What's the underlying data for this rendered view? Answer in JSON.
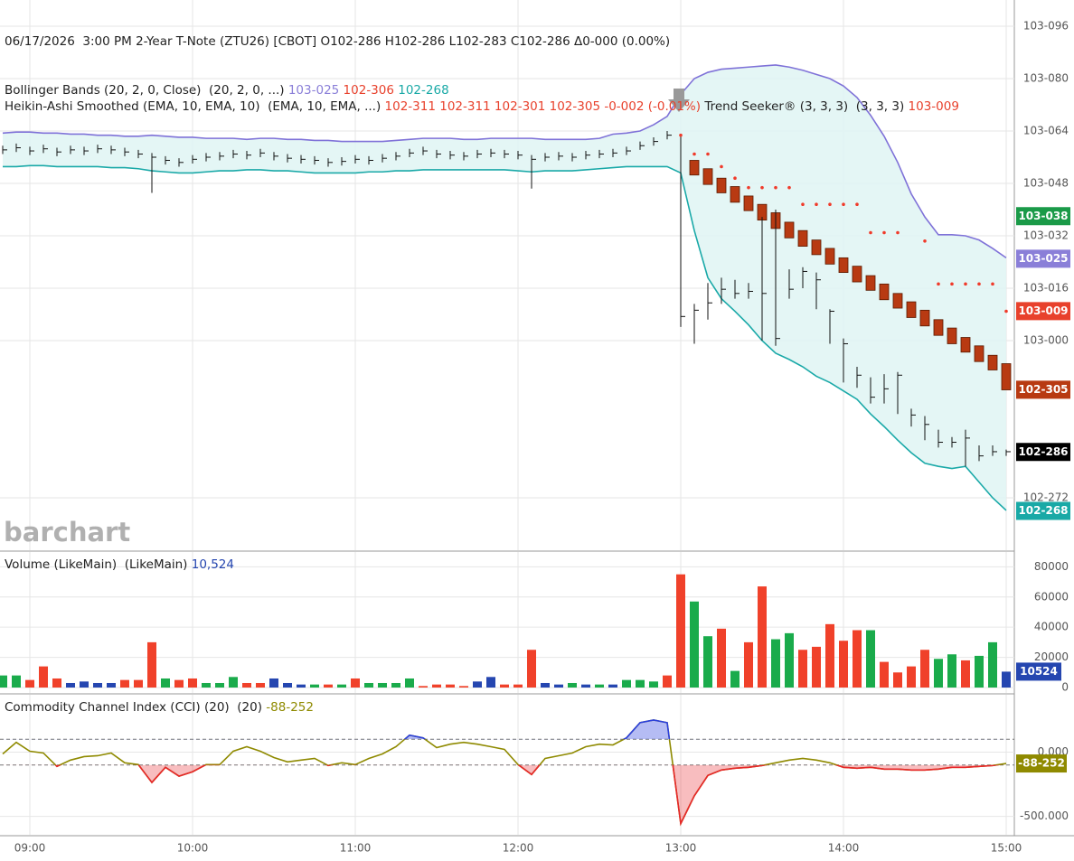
{
  "chart_data": [
    {
      "type": "ohlc",
      "title": "06/17/2026  3:00 PM 2-Year T-Note (ZTU26) [CBOT] O102-286 H102-286 L102-283 C102-286 Δ0-000 (0.00%)",
      "watermark": "barchart",
      "indicators": [
        {
          "name": "Bollinger Bands (20, 2, 0, Close)  (20, 2, 0, ...)",
          "values": [
            {
              "text": "103-025",
              "color": "#8a7fd8"
            },
            {
              "text": "102-306",
              "color": "#e8412c"
            },
            {
              "text": "102-268",
              "color": "#19a9a6"
            }
          ]
        },
        {
          "name": "Heikin-Ashi Smoothed (EMA, 10, EMA, 10)  (EMA, 10, EMA, ...)",
          "values": [
            {
              "text": "102-311 102-311 102-301 102-305 -0-002 (-0.01%)",
              "color": "#e8412c"
            }
          ]
        },
        {
          "name": "Trend Seeker® (3, 3, 3)  (3, 3, 3)",
          "values": [
            {
              "text": "103-009",
              "color": "#e8412c"
            }
          ]
        }
      ],
      "x": [
        "08:50",
        "08:55",
        "09:00",
        "09:05",
        "09:10",
        "09:15",
        "09:20",
        "09:25",
        "09:30",
        "09:35",
        "09:40",
        "09:45",
        "09:50",
        "09:55",
        "10:00",
        "10:05",
        "10:10",
        "10:15",
        "10:20",
        "10:25",
        "10:30",
        "10:35",
        "10:40",
        "10:45",
        "10:50",
        "10:55",
        "11:00",
        "11:05",
        "11:10",
        "11:15",
        "11:20",
        "11:25",
        "11:30",
        "11:35",
        "11:40",
        "11:45",
        "11:50",
        "11:55",
        "12:00",
        "12:05",
        "12:10",
        "12:15",
        "12:20",
        "12:25",
        "12:30",
        "12:35",
        "12:40",
        "12:45",
        "12:50",
        "12:55",
        "13:00",
        "13:05",
        "13:10",
        "13:15",
        "13:20",
        "13:25",
        "13:30",
        "13:35",
        "13:40",
        "13:45",
        "13:50",
        "13:55",
        "14:00",
        "14:05",
        "14:10",
        "14:15",
        "14:20",
        "14:25",
        "14:30",
        "14:35",
        "14:40",
        "14:45",
        "14:50",
        "14:55",
        "15:00"
      ],
      "high": [
        103.186,
        103.188,
        103.185,
        103.187,
        103.184,
        103.186,
        103.185,
        103.187,
        103.186,
        103.184,
        103.182,
        103.179,
        103.176,
        103.174,
        103.177,
        103.179,
        103.18,
        103.182,
        103.181,
        103.183,
        103.18,
        103.178,
        103.177,
        103.176,
        103.174,
        103.175,
        103.177,
        103.176,
        103.178,
        103.18,
        103.183,
        103.185,
        103.182,
        103.181,
        103.18,
        103.182,
        103.183,
        103.182,
        103.181,
        103.177,
        103.179,
        103.18,
        103.179,
        103.181,
        103.182,
        103.183,
        103.185,
        103.19,
        103.194,
        103.2,
        103.196,
        103.035,
        103.055,
        103.06,
        103.058,
        103.055,
        103.118,
        103.125,
        103.068,
        103.07,
        103.065,
        103.03,
        103.002,
        102.975,
        102.965,
        102.968,
        102.97,
        102.935,
        102.928,
        102.915,
        102.908,
        102.915,
        102.9,
        102.9,
        102.896
      ],
      "low": [
        103.178,
        103.18,
        103.177,
        103.179,
        103.176,
        103.178,
        103.177,
        103.179,
        103.178,
        103.176,
        103.174,
        103.141,
        103.168,
        103.166,
        103.169,
        103.171,
        103.172,
        103.174,
        103.173,
        103.175,
        103.172,
        103.17,
        103.169,
        103.168,
        103.166,
        103.167,
        103.169,
        103.168,
        103.17,
        103.172,
        103.175,
        103.177,
        103.174,
        103.173,
        103.172,
        103.174,
        103.175,
        103.174,
        103.173,
        103.145,
        103.171,
        103.172,
        103.171,
        103.173,
        103.174,
        103.175,
        103.177,
        103.182,
        103.186,
        103.192,
        103.013,
        102.997,
        103.02,
        103.035,
        103.04,
        103.04,
        103.0,
        102.995,
        103.04,
        103.05,
        103.03,
        102.997,
        102.96,
        102.955,
        102.94,
        102.94,
        102.93,
        102.918,
        102.905,
        102.898,
        102.898,
        102.88,
        102.885,
        102.89,
        102.89
      ],
      "close": [
        103.182,
        103.184,
        103.181,
        103.183,
        103.18,
        103.182,
        103.181,
        103.183,
        103.182,
        103.18,
        103.178,
        103.175,
        103.172,
        103.17,
        103.173,
        103.175,
        103.176,
        103.178,
        103.177,
        103.179,
        103.176,
        103.174,
        103.173,
        103.172,
        103.17,
        103.171,
        103.173,
        103.172,
        103.174,
        103.176,
        103.179,
        103.181,
        103.178,
        103.177,
        103.176,
        103.178,
        103.179,
        103.178,
        103.177,
        103.173,
        103.175,
        103.176,
        103.175,
        103.177,
        103.178,
        103.179,
        103.181,
        103.186,
        103.19,
        103.196,
        103.023,
        103.029,
        103.036,
        103.049,
        103.045,
        103.047,
        103.045,
        103.002,
        103.049,
        103.066,
        103.058,
        103.028,
        102.997,
        102.967,
        102.946,
        102.954,
        102.967,
        102.929,
        102.92,
        102.903,
        102.903,
        102.907,
        102.89,
        102.894,
        102.894
      ],
      "bollinger_upper": [
        103.198,
        103.199,
        103.199,
        103.198,
        103.198,
        103.197,
        103.197,
        103.196,
        103.196,
        103.195,
        103.195,
        103.196,
        103.195,
        103.194,
        103.194,
        103.193,
        103.193,
        103.193,
        103.192,
        103.193,
        103.193,
        103.192,
        103.192,
        103.191,
        103.191,
        103.19,
        103.19,
        103.19,
        103.19,
        103.191,
        103.192,
        103.193,
        103.193,
        103.193,
        103.192,
        103.192,
        103.193,
        103.193,
        103.193,
        103.193,
        103.192,
        103.192,
        103.192,
        103.192,
        103.193,
        103.197,
        103.198,
        103.2,
        103.206,
        103.214,
        103.235,
        103.25,
        103.256,
        103.259,
        103.26,
        103.261,
        103.262,
        103.263,
        103.261,
        103.258,
        103.254,
        103.25,
        103.243,
        103.232,
        103.215,
        103.195,
        103.17,
        103.14,
        103.118,
        103.101,
        103.101,
        103.1,
        103.096,
        103.088,
        103.079
      ],
      "bollinger_lower": [
        103.166,
        103.166,
        103.167,
        103.167,
        103.166,
        103.166,
        103.166,
        103.166,
        103.165,
        103.165,
        103.164,
        103.162,
        103.161,
        103.16,
        103.16,
        103.161,
        103.162,
        103.162,
        103.163,
        103.163,
        103.162,
        103.162,
        103.161,
        103.16,
        103.16,
        103.16,
        103.16,
        103.161,
        103.161,
        103.162,
        103.162,
        103.163,
        103.163,
        103.163,
        103.163,
        103.163,
        103.163,
        103.163,
        103.162,
        103.161,
        103.162,
        103.162,
        103.162,
        103.163,
        103.164,
        103.165,
        103.166,
        103.166,
        103.166,
        103.166,
        103.16,
        103.105,
        103.06,
        103.04,
        103.028,
        103.015,
        103.0,
        102.988,
        102.982,
        102.975,
        102.966,
        102.96,
        102.952,
        102.944,
        102.93,
        102.918,
        102.905,
        102.893,
        102.883,
        102.88,
        102.878,
        102.88,
        102.865,
        102.85,
        102.838
      ],
      "band_colors": {
        "upper": "#7f72d8",
        "lower": "#1aa9a8",
        "fill": "#dff4f3"
      },
      "heikin_ashi": {
        "color": "#b83a12",
        "x": [
          "13:05",
          "13:10",
          "13:15",
          "13:20",
          "13:25",
          "13:30",
          "13:35",
          "13:40",
          "13:45",
          "13:50",
          "13:55",
          "14:00",
          "14:05",
          "14:10",
          "14:15",
          "14:20",
          "14:25",
          "14:30",
          "14:35",
          "14:40",
          "14:45",
          "14:50",
          "14:55",
          "15:00"
        ],
        "open": [
          103.172,
          103.164,
          103.155,
          103.147,
          103.138,
          103.13,
          103.122,
          103.113,
          103.105,
          103.096,
          103.088,
          103.079,
          103.071,
          103.062,
          103.054,
          103.045,
          103.037,
          103.029,
          103.02,
          103.012,
          103.003,
          102.995,
          102.986,
          102.978
        ],
        "close": [
          103.158,
          103.149,
          103.141,
          103.132,
          103.124,
          103.115,
          103.107,
          103.098,
          103.09,
          103.082,
          103.073,
          103.065,
          103.056,
          103.048,
          103.039,
          103.031,
          103.022,
          103.014,
          103.005,
          102.997,
          102.989,
          102.98,
          102.972,
          102.953
        ]
      },
      "trend_seeker": {
        "color": "#f03a2a",
        "x": [
          "13:00",
          "13:05",
          "13:10",
          "13:15",
          "13:20",
          "13:25",
          "13:30",
          "13:35",
          "13:40",
          "13:45",
          "13:50",
          "13:55",
          "14:00",
          "14:05",
          "14:10",
          "14:15",
          "14:20",
          "14:25",
          "14:30",
          "14:35",
          "14:40",
          "14:45",
          "14:50",
          "14:55",
          "15:00"
        ],
        "values": [
          103.196,
          103.178,
          103.178,
          103.166,
          103.155,
          103.146,
          103.146,
          103.146,
          103.146,
          103.13,
          103.13,
          103.13,
          103.13,
          103.13,
          103.103,
          103.103,
          103.103,
          null,
          103.095,
          103.054,
          103.054,
          103.054,
          103.054,
          103.054,
          103.028
        ]
      },
      "ylim": [
        102.8,
        103.325
      ],
      "yticks": [
        {
          "value": 103.3,
          "label": "103-096"
        },
        {
          "value": 103.25,
          "label": "103-080"
        },
        {
          "value": 103.2,
          "label": "103-064"
        },
        {
          "value": 103.15,
          "label": "103-048"
        },
        {
          "value": 103.1,
          "label": "103-032"
        },
        {
          "value": 103.05,
          "label": "103-016"
        },
        {
          "value": 103.0,
          "label": "103-000"
        },
        {
          "value": 102.85,
          "label": "102-272"
        }
      ],
      "xticks": [
        "09:00",
        "10:00",
        "11:00",
        "12:00",
        "13:00",
        "14:00",
        "15:00"
      ],
      "grid": true,
      "price_labels": [
        {
          "value": 103.11875,
          "label": "103-038",
          "color": "#1a9a48"
        },
        {
          "value": 103.078125,
          "label": "103-025",
          "color": "#8a7fd8"
        },
        {
          "value": 103.028125,
          "label": "103-009",
          "color": "#e8412c"
        },
        {
          "value": 102.953125,
          "label": "102-305",
          "color": "#b83a12"
        },
        {
          "value": 102.89375,
          "label": "102-286",
          "color": "#000000"
        },
        {
          "value": 102.8375,
          "label": "102-268",
          "color": "#19a9a6"
        }
      ]
    },
    {
      "type": "bar",
      "title": "Volume (LikeMain)  (LikeMain)",
      "title_value": "10,524",
      "values": [
        8000,
        8000,
        5000,
        14000,
        6000,
        3000,
        4000,
        3000,
        3000,
        5000,
        5000,
        30000,
        6000,
        5000,
        6000,
        3000,
        3000,
        7000,
        3000,
        3000,
        6000,
        3000,
        2000,
        2000,
        2000,
        2000,
        6000,
        3000,
        3000,
        3000,
        6000,
        1000,
        2000,
        2000,
        1000,
        4000,
        7000,
        2000,
        2000,
        25000,
        3000,
        2000,
        3000,
        2000,
        2000,
        2000,
        5000,
        5000,
        4000,
        8000,
        75000,
        57000,
        34000,
        39000,
        11000,
        30000,
        67000,
        32000,
        36000,
        25000,
        27000,
        42000,
        31000,
        38000,
        38000,
        17000,
        10000,
        14000,
        25000,
        19000,
        22000,
        18000,
        21000,
        30000,
        10524
      ],
      "colors": [
        "#1aab4b",
        "#1aab4b",
        "#f0412a",
        "#f0412a",
        "#f0412a",
        "#2546b0",
        "#2546b0",
        "#2546b0",
        "#2546b0",
        "#f0412a",
        "#f0412a",
        "#f0412a",
        "#1aab4b",
        "#f0412a",
        "#f0412a",
        "#1aab4b",
        "#1aab4b",
        "#1aab4b",
        "#f0412a",
        "#f0412a",
        "#2546b0",
        "#2546b0",
        "#2546b0",
        "#1aab4b",
        "#f0412a",
        "#1aab4b",
        "#f0412a",
        "#1aab4b",
        "#1aab4b",
        "#1aab4b",
        "#1aab4b",
        "#f0412a",
        "#f0412a",
        "#f0412a",
        "#f0412a",
        "#2546b0",
        "#2546b0",
        "#f0412a",
        "#f0412a",
        "#f0412a",
        "#2546b0",
        "#2546b0",
        "#1aab4b",
        "#2546b0",
        "#1aab4b",
        "#2546b0",
        "#1aab4b",
        "#1aab4b",
        "#1aab4b",
        "#f0412a",
        "#f0412a",
        "#1aab4b",
        "#1aab4b",
        "#f0412a",
        "#1aab4b",
        "#f0412a",
        "#f0412a",
        "#1aab4b",
        "#1aab4b",
        "#f0412a",
        "#f0412a",
        "#f0412a",
        "#f0412a",
        "#f0412a",
        "#1aab4b",
        "#f0412a",
        "#f0412a",
        "#f0412a",
        "#f0412a",
        "#1aab4b",
        "#1aab4b",
        "#f0412a",
        "#1aab4b",
        "#1aab4b",
        "#2546b0"
      ],
      "ylim": [
        0,
        88000
      ],
      "yticks": [
        0,
        20000,
        40000,
        60000,
        80000
      ],
      "last_label": {
        "value": 10524,
        "color": "#2546b0"
      }
    },
    {
      "type": "line",
      "title": "Commodity Channel Index (CCI) (20)  (20)",
      "title_value": "-88-252",
      "color": "#8f8a00",
      "above_color": "#2a3fe0",
      "below_color": "#e8262a",
      "levels": [
        100,
        -100
      ],
      "values": [
        -14,
        76,
        7,
        -7,
        -111,
        -62,
        -35,
        -28,
        -7,
        -83,
        -97,
        -236,
        -118,
        -187,
        -153,
        -97,
        -97,
        7,
        42,
        7,
        -42,
        -76,
        -62,
        -49,
        -104,
        -83,
        -97,
        -49,
        -14,
        42,
        132,
        111,
        35,
        62,
        76,
        62,
        42,
        21,
        -97,
        -174,
        -49,
        -28,
        -7,
        42,
        62,
        56,
        111,
        229,
        250,
        229,
        -556,
        -340,
        -181,
        -139,
        -125,
        -118,
        -104,
        -83,
        -62,
        -49,
        -62,
        -83,
        -118,
        -125,
        -118,
        -132,
        -132,
        -139,
        -139,
        -132,
        -118,
        -118,
        -111,
        -104,
        -88.252
      ],
      "ylim": [
        -650,
        425
      ],
      "yticks": [
        {
          "value": 0,
          "label": "0.000"
        },
        {
          "value": -500,
          "label": "-500.000"
        }
      ],
      "last_label": {
        "value": -88.252,
        "label": "-88-252",
        "color": "#8f8a00"
      }
    }
  ]
}
